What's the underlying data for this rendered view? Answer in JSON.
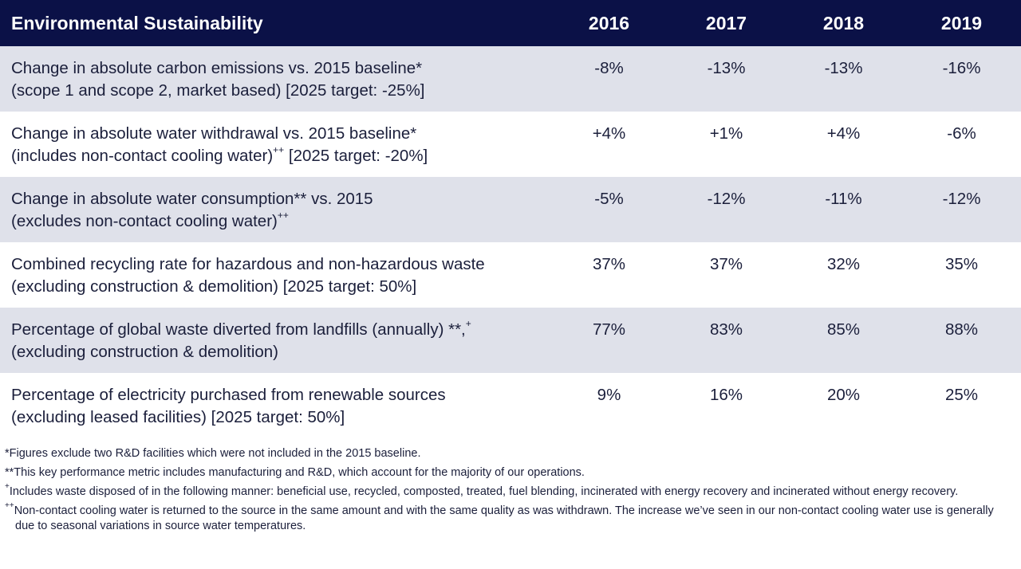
{
  "header": {
    "title": "Environmental Sustainability",
    "years": [
      "2016",
      "2017",
      "2018",
      "2019"
    ]
  },
  "rows": [
    {
      "line1": "Change in absolute carbon emissions vs. 2015 baseline*",
      "line2": "(scope 1 and scope 2, market based) [2025 target: -25%]",
      "line2_sup": "",
      "line2_tail": "",
      "line1_sup": "",
      "values": [
        "-8%",
        "-13%",
        "-13%",
        "-16%"
      ]
    },
    {
      "line1": "Change in absolute water withdrawal vs. 2015 baseline*",
      "line1_sup": "",
      "line2": "(includes non-contact cooling water)",
      "line2_sup": "++",
      "line2_tail": " [2025 target: -20%]",
      "values": [
        "+4%",
        "+1%",
        "+4%",
        "-6%"
      ]
    },
    {
      "line1": "Change in absolute water consumption** vs. 2015",
      "line1_sup": "",
      "line2": "(excludes non-contact cooling water)",
      "line2_sup": "++",
      "line2_tail": "",
      "values": [
        "-5%",
        "-12%",
        "-11%",
        "-12%"
      ]
    },
    {
      "line1": "Combined recycling rate for hazardous and non-hazardous waste",
      "line1_sup": "",
      "line2": "(excluding construction & demolition) [2025 target: 50%]",
      "line2_sup": "",
      "line2_tail": "",
      "values": [
        "37%",
        "37%",
        "32%",
        "35%"
      ]
    },
    {
      "line1": "Percentage of global waste diverted from landfills (annually) **,",
      "line1_sup": "+",
      "line2": "(excluding construction & demolition)",
      "line2_sup": "",
      "line2_tail": "",
      "values": [
        "77%",
        "83%",
        "85%",
        "88%"
      ]
    },
    {
      "line1": "Percentage of electricity purchased from renewable sources",
      "line1_sup": "",
      "line2": "(excluding leased facilities) [2025 target: 50%]",
      "line2_sup": "",
      "line2_tail": "",
      "values": [
        "9%",
        "16%",
        "20%",
        "25%"
      ]
    }
  ],
  "footnotes": [
    {
      "marker": "",
      "text": "*Figures exclude two R&D facilities which were not included in the 2015 baseline."
    },
    {
      "marker": "",
      "text": "**This key performance metric includes manufacturing and R&D, which account for the majority of our operations."
    },
    {
      "marker": "+",
      "text": "Includes waste disposed of in the following manner: beneficial use, recycled, composted, treated, fuel blending, incinerated with energy recovery and incinerated without energy recovery."
    },
    {
      "marker": "++",
      "text": "Non-contact cooling water is returned to the source in the same amount and with the same quality as was withdrawn. The increase we’ve seen in our non-contact cooling water use is generally due to seasonal variations in source water temperatures."
    }
  ]
}
